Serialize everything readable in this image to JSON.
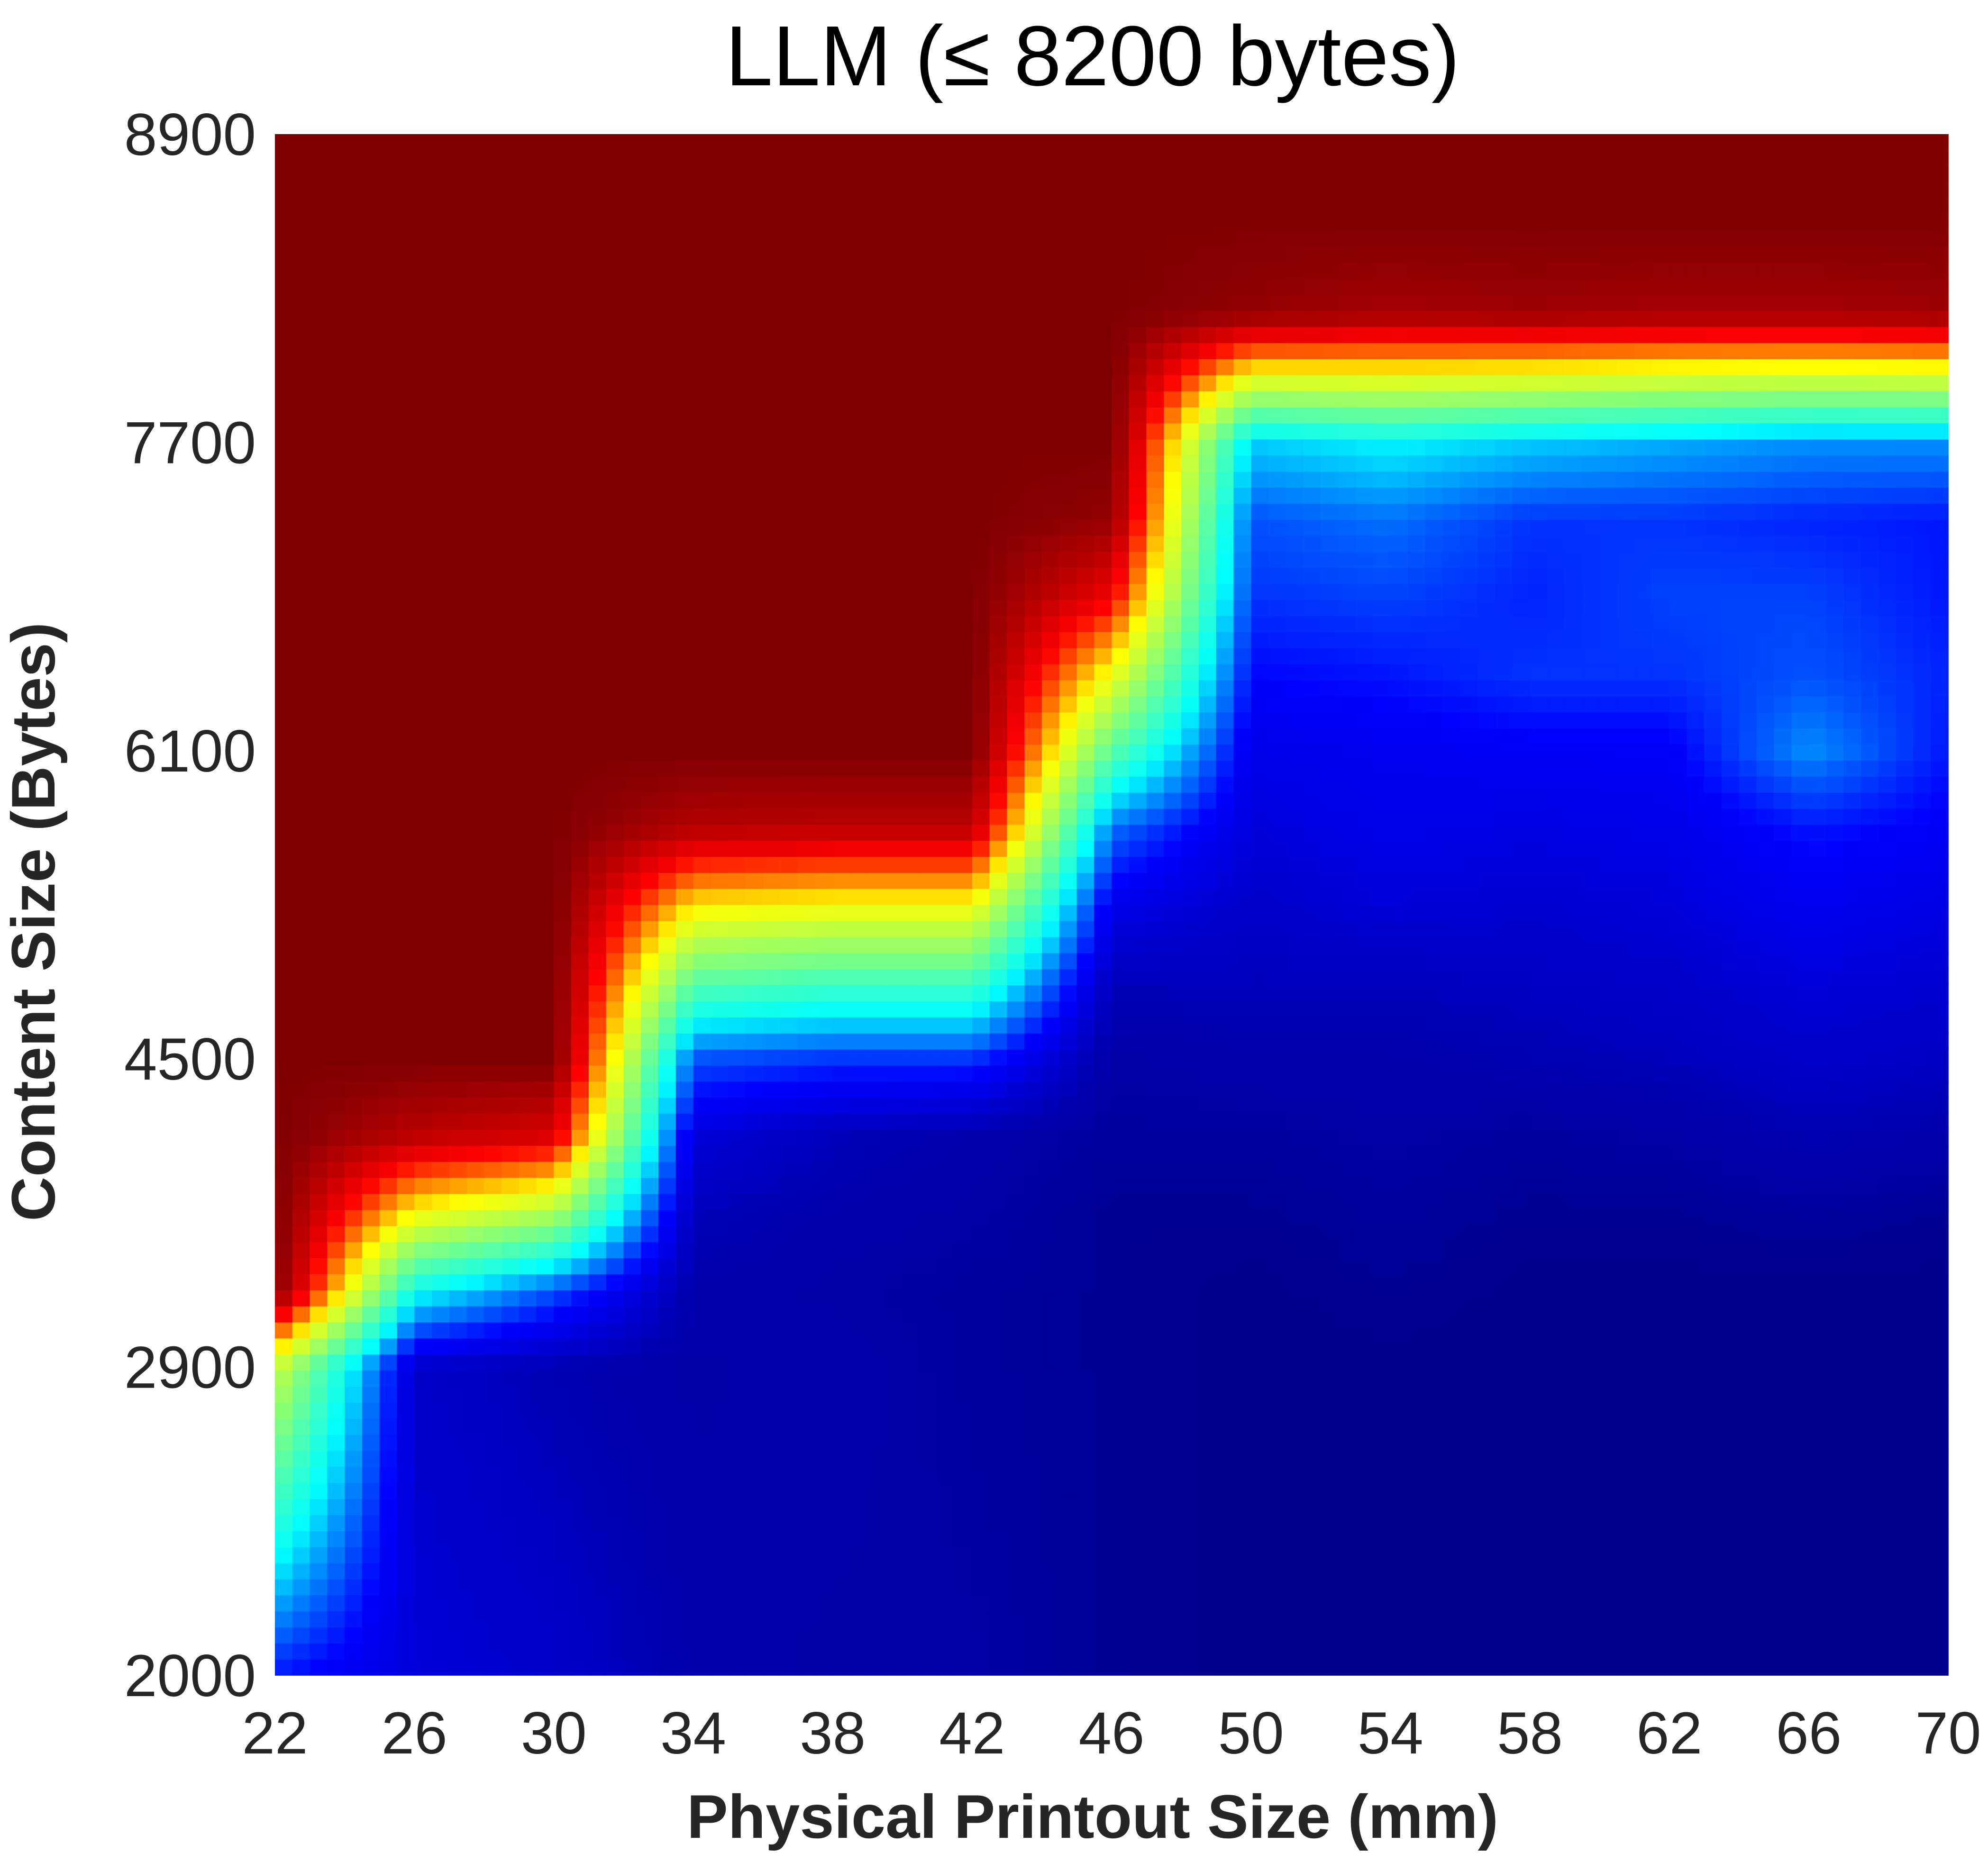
{
  "chart_data": {
    "type": "heatmap",
    "title": "LLM (≤ 8200 bytes)",
    "xlabel": "Physical Printout Size (mm)",
    "ylabel": "Content Size (Bytes)",
    "xlim": [
      22,
      70
    ],
    "ylim": [
      2000,
      8900
    ],
    "x_ticks": [
      "22",
      "26",
      "30",
      "34",
      "38",
      "42",
      "46",
      "50",
      "54",
      "58",
      "62",
      "66",
      "70"
    ],
    "y_ticks": [
      "2000",
      "2900",
      "4500",
      "6100",
      "7700",
      "8900"
    ],
    "y_tick_values": [
      2000,
      2900,
      4500,
      6100,
      7700,
      8900
    ],
    "colormap": "jet",
    "colormap_stops": [
      "#00007f",
      "#0000ff",
      "#00ffff",
      "#7fff7f",
      "#ffff00",
      "#ff0000",
      "#7f0000"
    ],
    "value_range": [
      0,
      1
    ],
    "x": [
      22,
      26,
      30,
      34,
      38,
      42,
      46,
      50,
      54,
      58,
      62,
      66,
      70
    ],
    "y": [
      2000,
      2900,
      3300,
      3700,
      4100,
      4500,
      4900,
      5300,
      5700,
      6100,
      6500,
      6900,
      7300,
      7700,
      8200,
      8600,
      8900
    ],
    "z": [
      [
        0.18,
        0.12,
        0.1,
        0.06,
        0.05,
        0.05,
        0.03,
        0.02,
        0.02,
        0.02,
        0.02,
        0.02,
        0.02
      ],
      [
        0.6,
        0.1,
        0.07,
        0.05,
        0.06,
        0.04,
        0.03,
        0.02,
        0.02,
        0.02,
        0.02,
        0.02,
        0.02
      ],
      [
        1.0,
        0.35,
        0.22,
        0.06,
        0.05,
        0.04,
        0.03,
        0.02,
        0.03,
        0.02,
        0.02,
        0.02,
        0.02
      ],
      [
        1.0,
        0.66,
        0.56,
        0.08,
        0.06,
        0.05,
        0.03,
        0.03,
        0.04,
        0.03,
        0.03,
        0.04,
        0.03
      ],
      [
        1.0,
        0.92,
        0.88,
        0.12,
        0.08,
        0.06,
        0.04,
        0.04,
        0.05,
        0.04,
        0.05,
        0.07,
        0.06
      ],
      [
        1.0,
        1.0,
        1.0,
        0.22,
        0.2,
        0.2,
        0.05,
        0.06,
        0.06,
        0.07,
        0.08,
        0.1,
        0.09
      ],
      [
        1.0,
        1.0,
        1.0,
        0.45,
        0.42,
        0.42,
        0.08,
        0.08,
        0.08,
        0.09,
        0.1,
        0.12,
        0.11
      ],
      [
        1.0,
        1.0,
        1.0,
        0.68,
        0.66,
        0.66,
        0.14,
        0.1,
        0.12,
        0.11,
        0.12,
        0.15,
        0.13
      ],
      [
        1.0,
        1.0,
        1.0,
        0.93,
        0.92,
        0.92,
        0.24,
        0.12,
        0.14,
        0.13,
        0.14,
        0.18,
        0.16
      ],
      [
        1.0,
        1.0,
        1.0,
        1.0,
        1.0,
        1.0,
        0.45,
        0.14,
        0.15,
        0.16,
        0.16,
        0.26,
        0.18
      ],
      [
        1.0,
        1.0,
        1.0,
        1.0,
        1.0,
        1.0,
        0.65,
        0.17,
        0.18,
        0.2,
        0.2,
        0.22,
        0.19
      ],
      [
        1.0,
        1.0,
        1.0,
        1.0,
        1.0,
        1.0,
        0.85,
        0.2,
        0.21,
        0.19,
        0.21,
        0.21,
        0.18
      ],
      [
        1.0,
        1.0,
        1.0,
        1.0,
        1.0,
        1.0,
        0.97,
        0.22,
        0.24,
        0.2,
        0.2,
        0.19,
        0.18
      ],
      [
        1.0,
        1.0,
        1.0,
        1.0,
        1.0,
        1.0,
        1.0,
        0.3,
        0.33,
        0.3,
        0.28,
        0.26,
        0.26
      ],
      [
        1.0,
        1.0,
        1.0,
        1.0,
        1.0,
        1.0,
        1.0,
        0.97,
        0.95,
        0.96,
        0.95,
        0.95,
        0.96
      ],
      [
        1.0,
        1.0,
        1.0,
        1.0,
        1.0,
        1.0,
        1.0,
        1.0,
        1.0,
        1.0,
        1.0,
        1.0,
        1.0
      ],
      [
        1.0,
        1.0,
        1.0,
        1.0,
        1.0,
        1.0,
        1.0,
        1.0,
        1.0,
        1.0,
        1.0,
        1.0,
        1.0
      ]
    ]
  }
}
